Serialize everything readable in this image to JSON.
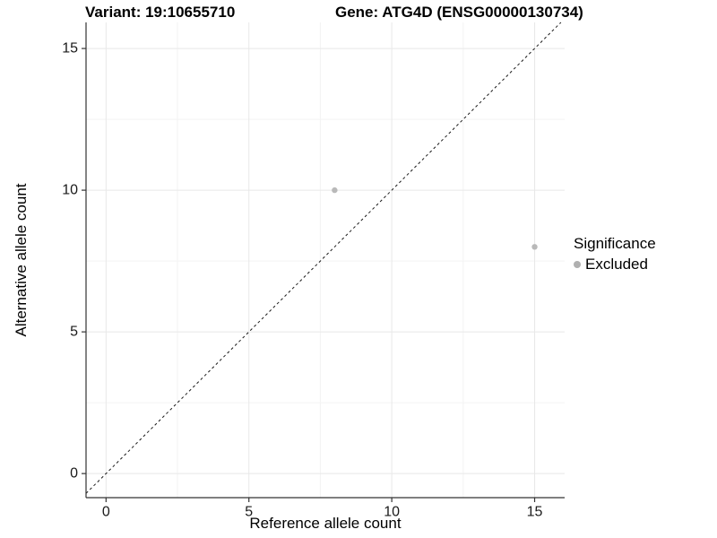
{
  "chart_data": {
    "type": "scatter",
    "title_left": "Variant: 19:10655710",
    "title_right": "Gene: ATG4D (ENSG00000130734)",
    "xlabel": "Reference allele count",
    "ylabel": "Alternative allele count",
    "xlim": [
      -0.7,
      16.05
    ],
    "ylim": [
      -0.85,
      15.92
    ],
    "xticks": [
      0,
      5,
      10,
      15
    ],
    "yticks": [
      0,
      5,
      10,
      15
    ],
    "xminor": [
      2.5,
      7.5,
      12.5
    ],
    "yminor": [
      2.5,
      7.5,
      12.5
    ],
    "grid": "major and minor, very light gray, on white background",
    "identity_line": {
      "type": "dashed",
      "slope": 1,
      "intercept": 0,
      "color": "#1a1a1a"
    },
    "series": [
      {
        "name": "Excluded",
        "color": "#b9b9b9",
        "points": [
          {
            "x": 8,
            "y": 10
          },
          {
            "x": 15,
            "y": 8
          }
        ]
      }
    ],
    "legend": {
      "position": "right",
      "title": "Significance",
      "items": [
        {
          "label": "Excluded",
          "color": "#b0b0b0"
        }
      ]
    },
    "colors": {
      "axis_line": "#333333",
      "tick_mark": "#333333",
      "tick_label": "#1a1a1a",
      "grid_major": "#e8e8e8",
      "grid_minor": "#f3f3f3",
      "background": "#ffffff"
    }
  }
}
